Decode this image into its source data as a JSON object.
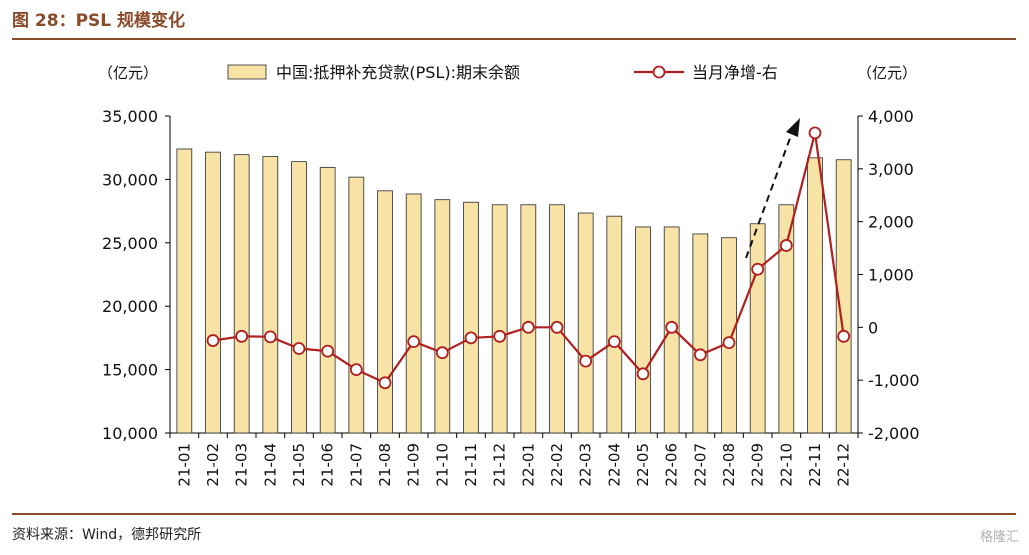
{
  "header": {
    "title": "图 28：PSL 规模变化"
  },
  "footer": {
    "source": "资料来源：Wind，德邦研究所",
    "watermark": "格隆汇"
  },
  "chart_data": {
    "type": "bar+line",
    "categories": [
      "21-01",
      "21-02",
      "21-03",
      "21-04",
      "21-05",
      "21-06",
      "21-07",
      "21-08",
      "21-09",
      "21-10",
      "21-11",
      "21-12",
      "22-01",
      "22-02",
      "22-03",
      "22-04",
      "22-05",
      "22-06",
      "22-07",
      "22-08",
      "22-09",
      "22-10",
      "22-11",
      "22-12"
    ],
    "series": [
      {
        "name": "中国:抵押补充贷款(PSL):期末余额",
        "kind": "bar",
        "axis": "left",
        "color": "#f7e3a6",
        "values": [
          32400,
          32150,
          31950,
          31800,
          31400,
          30950,
          30180,
          29100,
          28850,
          28400,
          28200,
          28000,
          28000,
          28000,
          27350,
          27100,
          26250,
          26250,
          25700,
          25400,
          26500,
          28000,
          31700,
          31550
        ]
      },
      {
        "name": "当月净增-右",
        "kind": "line",
        "axis": "right",
        "color": "#b02020",
        "values": [
          null,
          -250,
          -170,
          -180,
          -400,
          -450,
          -800,
          -1050,
          -270,
          -480,
          -200,
          -170,
          0,
          0,
          -640,
          -270,
          -880,
          0,
          -520,
          -290,
          1100,
          1550,
          3680,
          -170
        ]
      }
    ],
    "left_axis": {
      "unit": "（亿元）",
      "min": 10000,
      "max": 35000,
      "ticks": [
        "10,000",
        "15,000",
        "20,000",
        "25,000",
        "30,000",
        "35,000"
      ]
    },
    "right_axis": {
      "unit": "（亿元）",
      "min": -2000,
      "max": 4000,
      "ticks": [
        "-2,000",
        "-1,000",
        "0",
        "1,000",
        "2,000",
        "3,000",
        "4,000"
      ]
    },
    "legend": "top",
    "annotation": "dashed upward arrow"
  }
}
